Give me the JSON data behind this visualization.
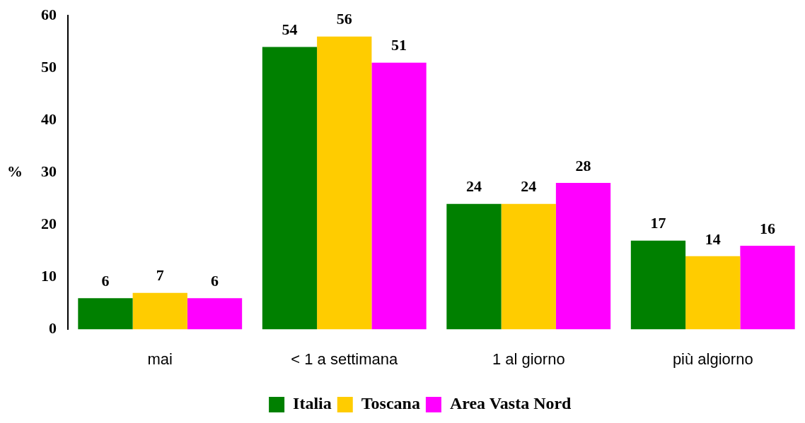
{
  "chart_data": {
    "type": "bar",
    "ylabel": "%",
    "categories": [
      "mai",
      "< 1 a settimana",
      "1 al giorno",
      "più algiorno"
    ],
    "series": [
      {
        "name": "Italia",
        "color": "#008000",
        "values": [
          6,
          54,
          24,
          17
        ]
      },
      {
        "name": "Toscana",
        "color": "#ffcc00",
        "values": [
          7,
          56,
          24,
          14
        ]
      },
      {
        "name": "Area Vasta Nord",
        "color": "#ff00ff",
        "values": [
          6,
          51,
          28,
          16
        ]
      }
    ],
    "ylim": [
      0,
      60
    ],
    "yticks": [
      0,
      10,
      20,
      30,
      40,
      50,
      60
    ],
    "grid": false,
    "legend": "bottom",
    "data_labels": true
  }
}
